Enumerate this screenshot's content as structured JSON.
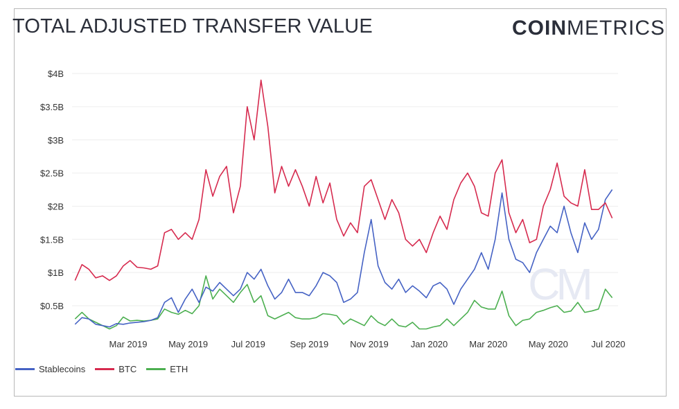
{
  "header": {
    "title": "TOTAL ADJUSTED TRANSFER VALUE",
    "logo_bold": "COIN",
    "logo_light": "METRICS",
    "watermark": "CM"
  },
  "chart_data": {
    "type": "line",
    "title": "TOTAL ADJUSTED TRANSFER VALUE",
    "xlabel": "",
    "ylabel": "",
    "ylim": [
      0,
      4
    ],
    "y_ticks": [
      {
        "v": 0.5,
        "label": "$0.5B"
      },
      {
        "v": 1,
        "label": "$1B"
      },
      {
        "v": 1.5,
        "label": "$1.5B"
      },
      {
        "v": 2,
        "label": "$2B"
      },
      {
        "v": 2.5,
        "label": "$2.5B"
      },
      {
        "v": 3,
        "label": "$3B"
      },
      {
        "v": 3.5,
        "label": "$3.5B"
      },
      {
        "v": 4,
        "label": "$4B"
      }
    ],
    "x_ticks": [
      {
        "d": "2019-03-01",
        "label": "Mar 2019"
      },
      {
        "d": "2019-05-01",
        "label": "May 2019"
      },
      {
        "d": "2019-07-01",
        "label": "Jul 2019"
      },
      {
        "d": "2019-09-01",
        "label": "Sep 2019"
      },
      {
        "d": "2019-11-01",
        "label": "Nov 2019"
      },
      {
        "d": "2020-01-01",
        "label": "Jan 2020"
      },
      {
        "d": "2020-03-01",
        "label": "Mar 2020"
      },
      {
        "d": "2020-05-01",
        "label": "May 2020"
      },
      {
        "d": "2020-07-01",
        "label": "Jul 2020"
      }
    ],
    "grid": true,
    "legend": "bottom-left",
    "unit": "USD billions",
    "x": [
      "2019-01-06",
      "2019-01-13",
      "2019-01-20",
      "2019-01-27",
      "2019-02-03",
      "2019-02-10",
      "2019-02-17",
      "2019-02-24",
      "2019-03-03",
      "2019-03-10",
      "2019-03-17",
      "2019-03-24",
      "2019-03-31",
      "2019-04-07",
      "2019-04-14",
      "2019-04-21",
      "2019-04-28",
      "2019-05-05",
      "2019-05-12",
      "2019-05-19",
      "2019-05-26",
      "2019-06-02",
      "2019-06-09",
      "2019-06-16",
      "2019-06-23",
      "2019-06-30",
      "2019-07-07",
      "2019-07-14",
      "2019-07-21",
      "2019-07-28",
      "2019-08-04",
      "2019-08-11",
      "2019-08-18",
      "2019-08-25",
      "2019-09-01",
      "2019-09-08",
      "2019-09-15",
      "2019-09-22",
      "2019-09-29",
      "2019-10-06",
      "2019-10-13",
      "2019-10-20",
      "2019-10-27",
      "2019-11-03",
      "2019-11-10",
      "2019-11-17",
      "2019-11-24",
      "2019-12-01",
      "2019-12-08",
      "2019-12-15",
      "2019-12-22",
      "2019-12-29",
      "2020-01-05",
      "2020-01-12",
      "2020-01-19",
      "2020-01-26",
      "2020-02-02",
      "2020-02-09",
      "2020-02-16",
      "2020-02-23",
      "2020-03-01",
      "2020-03-08",
      "2020-03-15",
      "2020-03-22",
      "2020-03-29",
      "2020-04-05",
      "2020-04-12",
      "2020-04-19",
      "2020-04-26",
      "2020-05-03",
      "2020-05-10",
      "2020-05-17",
      "2020-05-24",
      "2020-05-31",
      "2020-06-07",
      "2020-06-14",
      "2020-06-21",
      "2020-06-28",
      "2020-07-05"
    ],
    "series": [
      {
        "name": "Stablecoins",
        "color": "#4562c4",
        "values": [
          0.22,
          0.32,
          0.3,
          0.22,
          0.2,
          0.18,
          0.23,
          0.22,
          0.24,
          0.25,
          0.26,
          0.28,
          0.32,
          0.55,
          0.62,
          0.4,
          0.6,
          0.75,
          0.55,
          0.78,
          0.72,
          0.85,
          0.75,
          0.65,
          0.75,
          1.0,
          0.9,
          1.05,
          0.8,
          0.6,
          0.7,
          0.9,
          0.7,
          0.7,
          0.65,
          0.8,
          1.0,
          0.95,
          0.85,
          0.55,
          0.6,
          0.7,
          1.3,
          1.8,
          1.1,
          0.85,
          0.75,
          0.9,
          0.7,
          0.8,
          0.72,
          0.62,
          0.8,
          0.85,
          0.75,
          0.52,
          0.75,
          0.9,
          1.05,
          1.3,
          1.05,
          1.5,
          2.2,
          1.5,
          1.2,
          1.15,
          1.0,
          1.3,
          1.5,
          1.7,
          1.6,
          2.0,
          1.6,
          1.3,
          1.75,
          1.5,
          1.65,
          2.1,
          2.25
        ]
      },
      {
        "name": "BTC",
        "color": "#d62a4e",
        "values": [
          0.88,
          1.12,
          1.05,
          0.92,
          0.95,
          0.88,
          0.95,
          1.1,
          1.18,
          1.08,
          1.07,
          1.05,
          1.1,
          1.6,
          1.65,
          1.5,
          1.6,
          1.5,
          1.8,
          2.55,
          2.15,
          2.45,
          2.6,
          1.9,
          2.3,
          3.5,
          3.0,
          3.9,
          3.2,
          2.2,
          2.6,
          2.3,
          2.55,
          2.3,
          2.0,
          2.45,
          2.05,
          2.35,
          1.8,
          1.55,
          1.75,
          1.6,
          2.3,
          2.4,
          2.1,
          1.8,
          2.1,
          1.9,
          1.5,
          1.4,
          1.5,
          1.3,
          1.6,
          1.85,
          1.65,
          2.1,
          2.35,
          2.5,
          2.3,
          1.9,
          1.85,
          2.5,
          2.7,
          1.9,
          1.6,
          1.8,
          1.45,
          1.5,
          2.0,
          2.25,
          2.65,
          2.15,
          2.05,
          2.0,
          2.55,
          1.95,
          1.95,
          2.05,
          1.82
        ]
      },
      {
        "name": "ETH",
        "color": "#4caf50",
        "values": [
          0.3,
          0.4,
          0.3,
          0.25,
          0.2,
          0.15,
          0.2,
          0.33,
          0.27,
          0.28,
          0.27,
          0.28,
          0.3,
          0.45,
          0.4,
          0.37,
          0.43,
          0.38,
          0.5,
          0.95,
          0.6,
          0.75,
          0.65,
          0.55,
          0.7,
          0.82,
          0.55,
          0.65,
          0.35,
          0.3,
          0.35,
          0.4,
          0.32,
          0.3,
          0.3,
          0.32,
          0.38,
          0.37,
          0.35,
          0.22,
          0.3,
          0.25,
          0.2,
          0.35,
          0.25,
          0.2,
          0.3,
          0.2,
          0.18,
          0.25,
          0.15,
          0.15,
          0.18,
          0.2,
          0.3,
          0.2,
          0.3,
          0.4,
          0.58,
          0.48,
          0.45,
          0.45,
          0.72,
          0.35,
          0.2,
          0.28,
          0.3,
          0.4,
          0.43,
          0.47,
          0.5,
          0.4,
          0.42,
          0.55,
          0.4,
          0.42,
          0.45,
          0.75,
          0.62
        ]
      }
    ]
  }
}
